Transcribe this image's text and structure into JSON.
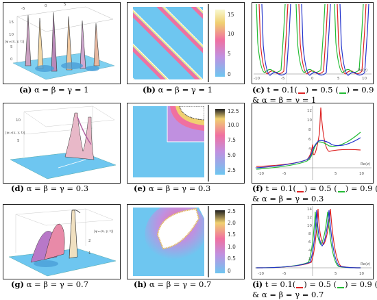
{
  "captions": {
    "a": {
      "tag": "(a)",
      "text": " α = β = γ = 1"
    },
    "b": {
      "tag": "(b)",
      "text": " α = β = γ = 1"
    },
    "c": {
      "tag": "(c)",
      "text1": " t = 0.1(",
      "text2": ") = 0.5 (",
      "text3": ") = 0.9 (",
      "text4": ")",
      "line2": "& α = β = γ = 1"
    },
    "d": {
      "tag": "(d)",
      "text": " α = β = γ = 0.3"
    },
    "e": {
      "tag": "(e)",
      "text": " α = β = γ = 0.3"
    },
    "f": {
      "tag": "(f)",
      "text1": " t = 0.1(",
      "text2": ") = 0.5 (",
      "text3": ") = 0.9 (",
      "text4": ")",
      "line2": "& α = β = γ = 0.3"
    },
    "g": {
      "tag": "(g)",
      "text": " α = β = γ = 0.7"
    },
    "h": {
      "tag": "(h)",
      "text": " α = β = γ = 0.7"
    },
    "i": {
      "tag": "(i)",
      "text1": " t = 0.1(",
      "text2": ") = 0.5 (",
      "text3": ") = 0.9 (",
      "text4": ")",
      "line2": "& α = β = γ = 0.7"
    }
  },
  "colors": {
    "t01": "#dd2222",
    "t05": "#22bb33",
    "t09": "#2233cc"
  },
  "zlabel": "|ψ₁₃(x, y, t)|",
  "re_label": "Re(z)",
  "colorbars": {
    "b": [
      "15",
      "10",
      "5",
      "0"
    ],
    "e": [
      "12.5",
      "10.0",
      "7.5",
      "5.0",
      "2.5"
    ],
    "h": [
      "2.5",
      "2.0",
      "1.5",
      "1.0",
      "0.5",
      "0"
    ]
  },
  "ticks": {
    "a_top": [
      "-5",
      "0",
      "5"
    ],
    "a_z": [
      "15",
      "10",
      "5",
      "0"
    ],
    "c_x": [
      "-10",
      "-5",
      "0",
      "5",
      "10"
    ],
    "d_z": [
      "10",
      "5"
    ],
    "f_x": [
      "-10",
      "-5",
      "5",
      "10"
    ],
    "f_y": [
      "12",
      "10",
      "8",
      "6",
      "4",
      "2"
    ],
    "g_z": [
      "2",
      "1"
    ],
    "i_x": [
      "-10",
      "-5",
      "5",
      "10"
    ],
    "i_y": [
      "14",
      "12",
      "10",
      "8",
      "6",
      "4",
      "2"
    ]
  }
}
